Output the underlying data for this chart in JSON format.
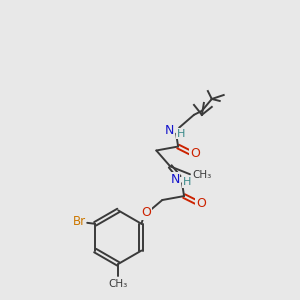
{
  "background_color": "#e8e8e8",
  "atom_colors": {
    "C": "#3a3a3a",
    "N": "#1414cc",
    "O": "#cc2200",
    "H": "#3a8a8a",
    "Br": "#cc7700"
  },
  "bond_color": "#3a3a3a",
  "figsize": [
    3.0,
    3.0
  ],
  "dpi": 100
}
